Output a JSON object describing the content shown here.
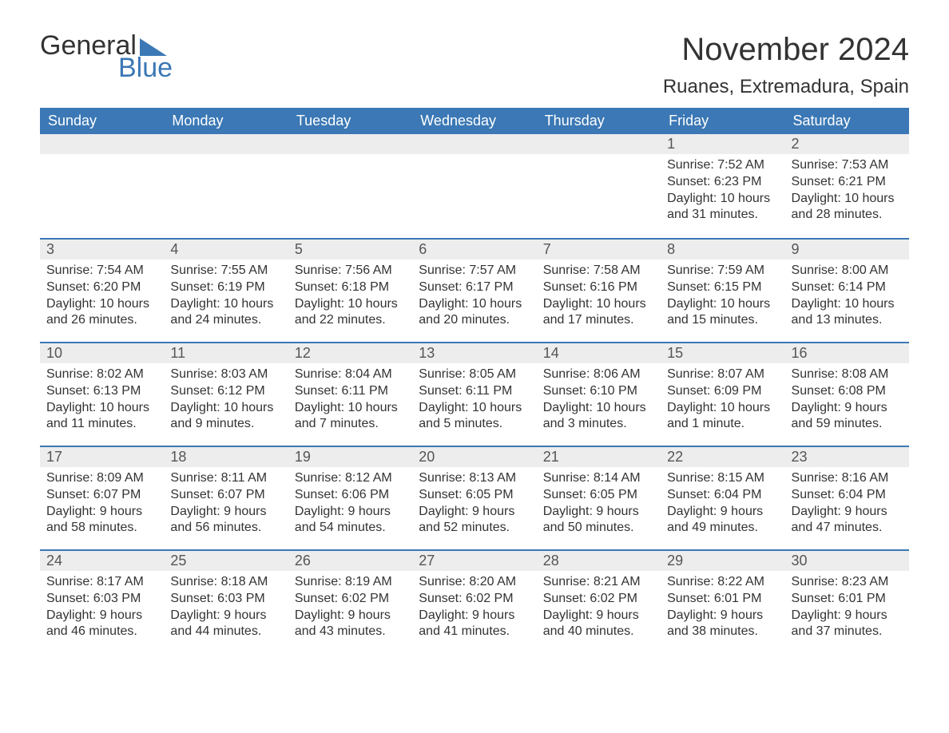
{
  "logo": {
    "word1": "General",
    "word2": "Blue",
    "triangle_color": "#3b78b5"
  },
  "title": "November 2024",
  "location": "Ruanes, Extremadura, Spain",
  "colors": {
    "header_bg": "#3b78b5",
    "header_text": "#ffffff",
    "daynum_bg": "#ededed",
    "row_divider": "#3b78b5",
    "body_text": "#333333"
  },
  "typography": {
    "title_size_pt": 30,
    "location_size_pt": 18,
    "header_size_pt": 13,
    "body_size_pt": 12
  },
  "layout": {
    "columns": 7,
    "rows": 5,
    "week_start": "Sunday"
  },
  "weekdays": [
    "Sunday",
    "Monday",
    "Tuesday",
    "Wednesday",
    "Thursday",
    "Friday",
    "Saturday"
  ],
  "first_weekday_index": 5,
  "days": [
    {
      "n": 1,
      "sunrise": "7:52 AM",
      "sunset": "6:23 PM",
      "daylight": "10 hours and 31 minutes."
    },
    {
      "n": 2,
      "sunrise": "7:53 AM",
      "sunset": "6:21 PM",
      "daylight": "10 hours and 28 minutes."
    },
    {
      "n": 3,
      "sunrise": "7:54 AM",
      "sunset": "6:20 PM",
      "daylight": "10 hours and 26 minutes."
    },
    {
      "n": 4,
      "sunrise": "7:55 AM",
      "sunset": "6:19 PM",
      "daylight": "10 hours and 24 minutes."
    },
    {
      "n": 5,
      "sunrise": "7:56 AM",
      "sunset": "6:18 PM",
      "daylight": "10 hours and 22 minutes."
    },
    {
      "n": 6,
      "sunrise": "7:57 AM",
      "sunset": "6:17 PM",
      "daylight": "10 hours and 20 minutes."
    },
    {
      "n": 7,
      "sunrise": "7:58 AM",
      "sunset": "6:16 PM",
      "daylight": "10 hours and 17 minutes."
    },
    {
      "n": 8,
      "sunrise": "7:59 AM",
      "sunset": "6:15 PM",
      "daylight": "10 hours and 15 minutes."
    },
    {
      "n": 9,
      "sunrise": "8:00 AM",
      "sunset": "6:14 PM",
      "daylight": "10 hours and 13 minutes."
    },
    {
      "n": 10,
      "sunrise": "8:02 AM",
      "sunset": "6:13 PM",
      "daylight": "10 hours and 11 minutes."
    },
    {
      "n": 11,
      "sunrise": "8:03 AM",
      "sunset": "6:12 PM",
      "daylight": "10 hours and 9 minutes."
    },
    {
      "n": 12,
      "sunrise": "8:04 AM",
      "sunset": "6:11 PM",
      "daylight": "10 hours and 7 minutes."
    },
    {
      "n": 13,
      "sunrise": "8:05 AM",
      "sunset": "6:11 PM",
      "daylight": "10 hours and 5 minutes."
    },
    {
      "n": 14,
      "sunrise": "8:06 AM",
      "sunset": "6:10 PM",
      "daylight": "10 hours and 3 minutes."
    },
    {
      "n": 15,
      "sunrise": "8:07 AM",
      "sunset": "6:09 PM",
      "daylight": "10 hours and 1 minute."
    },
    {
      "n": 16,
      "sunrise": "8:08 AM",
      "sunset": "6:08 PM",
      "daylight": "9 hours and 59 minutes."
    },
    {
      "n": 17,
      "sunrise": "8:09 AM",
      "sunset": "6:07 PM",
      "daylight": "9 hours and 58 minutes."
    },
    {
      "n": 18,
      "sunrise": "8:11 AM",
      "sunset": "6:07 PM",
      "daylight": "9 hours and 56 minutes."
    },
    {
      "n": 19,
      "sunrise": "8:12 AM",
      "sunset": "6:06 PM",
      "daylight": "9 hours and 54 minutes."
    },
    {
      "n": 20,
      "sunrise": "8:13 AM",
      "sunset": "6:05 PM",
      "daylight": "9 hours and 52 minutes."
    },
    {
      "n": 21,
      "sunrise": "8:14 AM",
      "sunset": "6:05 PM",
      "daylight": "9 hours and 50 minutes."
    },
    {
      "n": 22,
      "sunrise": "8:15 AM",
      "sunset": "6:04 PM",
      "daylight": "9 hours and 49 minutes."
    },
    {
      "n": 23,
      "sunrise": "8:16 AM",
      "sunset": "6:04 PM",
      "daylight": "9 hours and 47 minutes."
    },
    {
      "n": 24,
      "sunrise": "8:17 AM",
      "sunset": "6:03 PM",
      "daylight": "9 hours and 46 minutes."
    },
    {
      "n": 25,
      "sunrise": "8:18 AM",
      "sunset": "6:03 PM",
      "daylight": "9 hours and 44 minutes."
    },
    {
      "n": 26,
      "sunrise": "8:19 AM",
      "sunset": "6:02 PM",
      "daylight": "9 hours and 43 minutes."
    },
    {
      "n": 27,
      "sunrise": "8:20 AM",
      "sunset": "6:02 PM",
      "daylight": "9 hours and 41 minutes."
    },
    {
      "n": 28,
      "sunrise": "8:21 AM",
      "sunset": "6:02 PM",
      "daylight": "9 hours and 40 minutes."
    },
    {
      "n": 29,
      "sunrise": "8:22 AM",
      "sunset": "6:01 PM",
      "daylight": "9 hours and 38 minutes."
    },
    {
      "n": 30,
      "sunrise": "8:23 AM",
      "sunset": "6:01 PM",
      "daylight": "9 hours and 37 minutes."
    }
  ],
  "labels": {
    "sunrise": "Sunrise:",
    "sunset": "Sunset:",
    "daylight": "Daylight:"
  }
}
